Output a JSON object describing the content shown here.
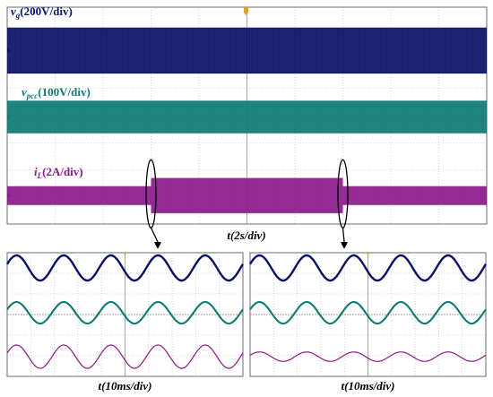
{
  "colors": {
    "vg": "#0a1266",
    "vpcc": "#0d7a73",
    "iL": "#8b1a8a",
    "grid": "#b8b8b8",
    "frame": "#6b6b6b",
    "arrow": "#000000",
    "marker": "#e0a030"
  },
  "chart_data": [
    {
      "type": "line",
      "title": "",
      "xlabel": "t(2s/div)",
      "signals": [
        {
          "sym": "v",
          "sub": "g",
          "scale": "(200V/div)",
          "color_key": "vg",
          "envelope": [
            {
              "t_div": 0,
              "amp_div": 0.85
            },
            {
              "t_div": 10,
              "amp_div": 0.85
            }
          ]
        },
        {
          "sym": "v",
          "sub": "pcc",
          "scale": "(100V/div)",
          "color_key": "vpcc",
          "envelope": [
            {
              "t_div": 0,
              "amp_div": 0.6
            },
            {
              "t_div": 10,
              "amp_div": 0.6
            }
          ]
        },
        {
          "sym": "i",
          "sub": "L",
          "scale": "(2A/div)",
          "color_key": "iL",
          "envelope": [
            {
              "t_div": 0,
              "amp_div": 0.35
            },
            {
              "t_div": 3.0,
              "amp_div": 0.35
            },
            {
              "t_div": 3.0,
              "amp_div": 0.65
            },
            {
              "t_div": 7.0,
              "amp_div": 0.65
            },
            {
              "t_div": 7.0,
              "amp_div": 0.35
            },
            {
              "t_div": 10,
              "amp_div": 0.35
            }
          ]
        }
      ],
      "zoom_points_div": [
        3.0,
        7.0
      ],
      "grid": true
    },
    {
      "type": "line",
      "title": "",
      "xlabel": "t(10ms/div)",
      "cycles": 5,
      "phase_cycles": 0.05,
      "amplitudes": [
        0.9,
        0.55,
        0.55
      ],
      "grid": true
    },
    {
      "type": "line",
      "title": "",
      "xlabel": "t(10ms/div)",
      "cycles": 5,
      "phase_cycles": 0.05,
      "amplitudes": [
        0.9,
        0.55,
        0.35
      ],
      "grid": true
    }
  ]
}
